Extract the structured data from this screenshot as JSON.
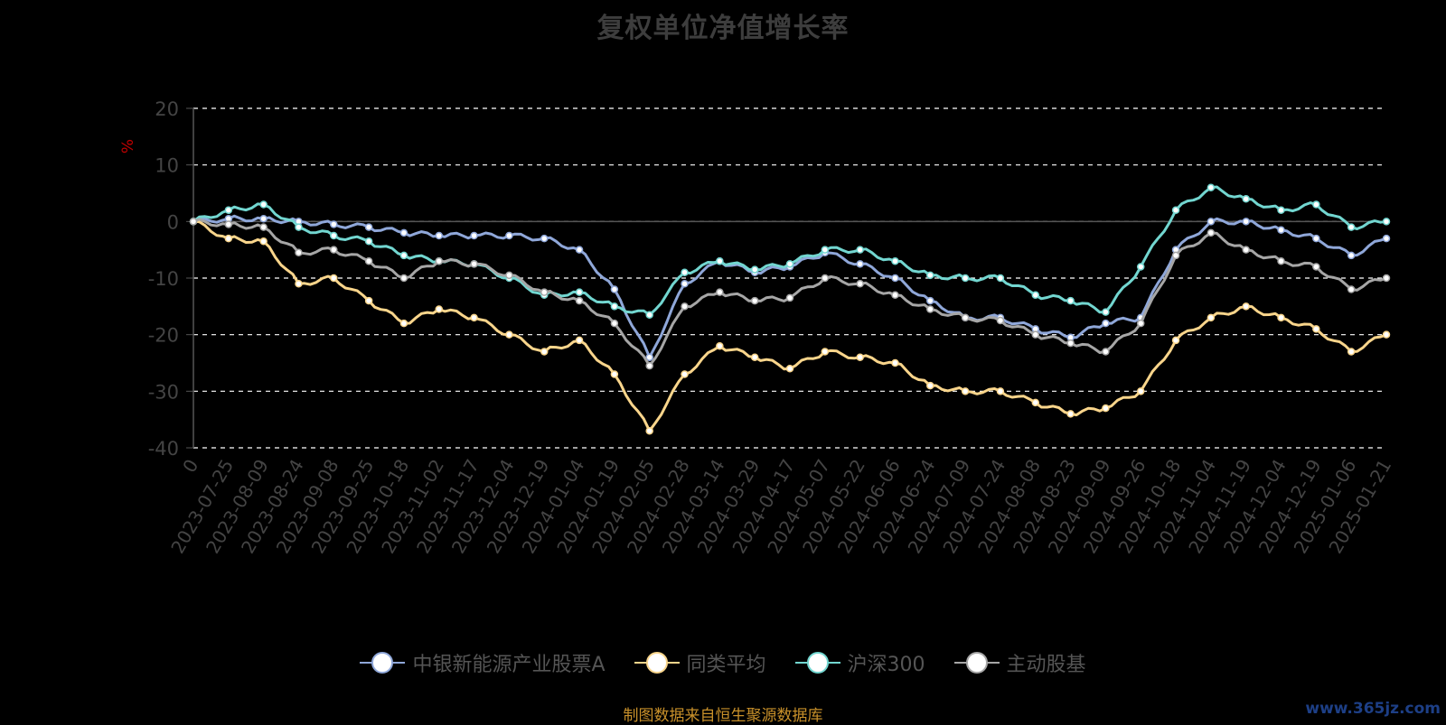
{
  "title": "复权单位净值增长率",
  "source": "制图数据来自恒生聚源数据库",
  "watermark": "www.365jz.com",
  "chart_data": {
    "type": "line",
    "ylabel": "%",
    "ylim": [
      -40,
      20
    ],
    "yticks": [
      20,
      10,
      0,
      -10,
      -20,
      -30,
      -40
    ],
    "grid": true,
    "legend_position": "bottom",
    "x": [
      "0",
      "2023-07-25",
      "2023-08-09",
      "2023-08-24",
      "2023-09-08",
      "2023-09-25",
      "2023-10-18",
      "2023-11-02",
      "2023-11-17",
      "2023-12-04",
      "2023-12-19",
      "2024-01-04",
      "2024-01-19",
      "2024-02-05",
      "2024-02-28",
      "2024-03-14",
      "2024-03-29",
      "2024-04-17",
      "2024-05-07",
      "2024-05-22",
      "2024-06-06",
      "2024-06-24",
      "2024-07-09",
      "2024-07-24",
      "2024-08-08",
      "2024-08-23",
      "2024-09-09",
      "2024-09-26",
      "2024-10-18",
      "2024-11-04",
      "2024-11-19",
      "2024-12-04",
      "2024-12-19",
      "2025-01-06",
      "2025-01-21"
    ],
    "series": [
      {
        "name": "中银新能源产业股票A",
        "color": "#8fa7d9",
        "values": [
          0,
          0.5,
          0.5,
          0,
          -0.5,
          -1,
          -2,
          -2.5,
          -2.5,
          -2.5,
          -3,
          -5,
          -12,
          -24,
          -11,
          -7,
          -9,
          -8,
          -5.5,
          -7.5,
          -10,
          -14,
          -17,
          -17,
          -19,
          -20.5,
          -18,
          -17,
          -5,
          0,
          0,
          -1.5,
          -3,
          -6,
          -3
        ]
      },
      {
        "name": "同类平均",
        "color": "#f9d58b",
        "values": [
          0,
          -3,
          -3.5,
          -11,
          -10,
          -14,
          -18,
          -15.5,
          -17,
          -20,
          -23,
          -21,
          -27,
          -37,
          -27,
          -22,
          -24,
          -26,
          -23,
          -24,
          -25,
          -29,
          -30,
          -30,
          -32,
          -34,
          -33,
          -30,
          -21,
          -17,
          -15,
          -17,
          -19,
          -23,
          -20
        ]
      },
      {
        "name": "沪深300",
        "color": "#72d6d0",
        "values": [
          0,
          2,
          3,
          -1,
          -2.5,
          -3.5,
          -6,
          -7,
          -7.5,
          -10,
          -13,
          -12.5,
          -15,
          -16.5,
          -9,
          -7,
          -8.5,
          -7.5,
          -5,
          -5,
          -7,
          -9.5,
          -10,
          -10,
          -13,
          -14,
          -16,
          -8,
          2,
          6,
          4,
          2,
          3,
          -1,
          0
        ]
      },
      {
        "name": "主动股基",
        "color": "#a6a6a6",
        "values": [
          0,
          -0.5,
          -1,
          -5.5,
          -5,
          -7,
          -10,
          -7,
          -7.5,
          -9.5,
          -12.5,
          -14,
          -18,
          -25.5,
          -15,
          -12.5,
          -14,
          -13.5,
          -10,
          -11,
          -13,
          -15.5,
          -17,
          -17.5,
          -20,
          -21.5,
          -23,
          -18,
          -6,
          -2,
          -5,
          -7,
          -8,
          -12,
          -10
        ]
      }
    ]
  }
}
